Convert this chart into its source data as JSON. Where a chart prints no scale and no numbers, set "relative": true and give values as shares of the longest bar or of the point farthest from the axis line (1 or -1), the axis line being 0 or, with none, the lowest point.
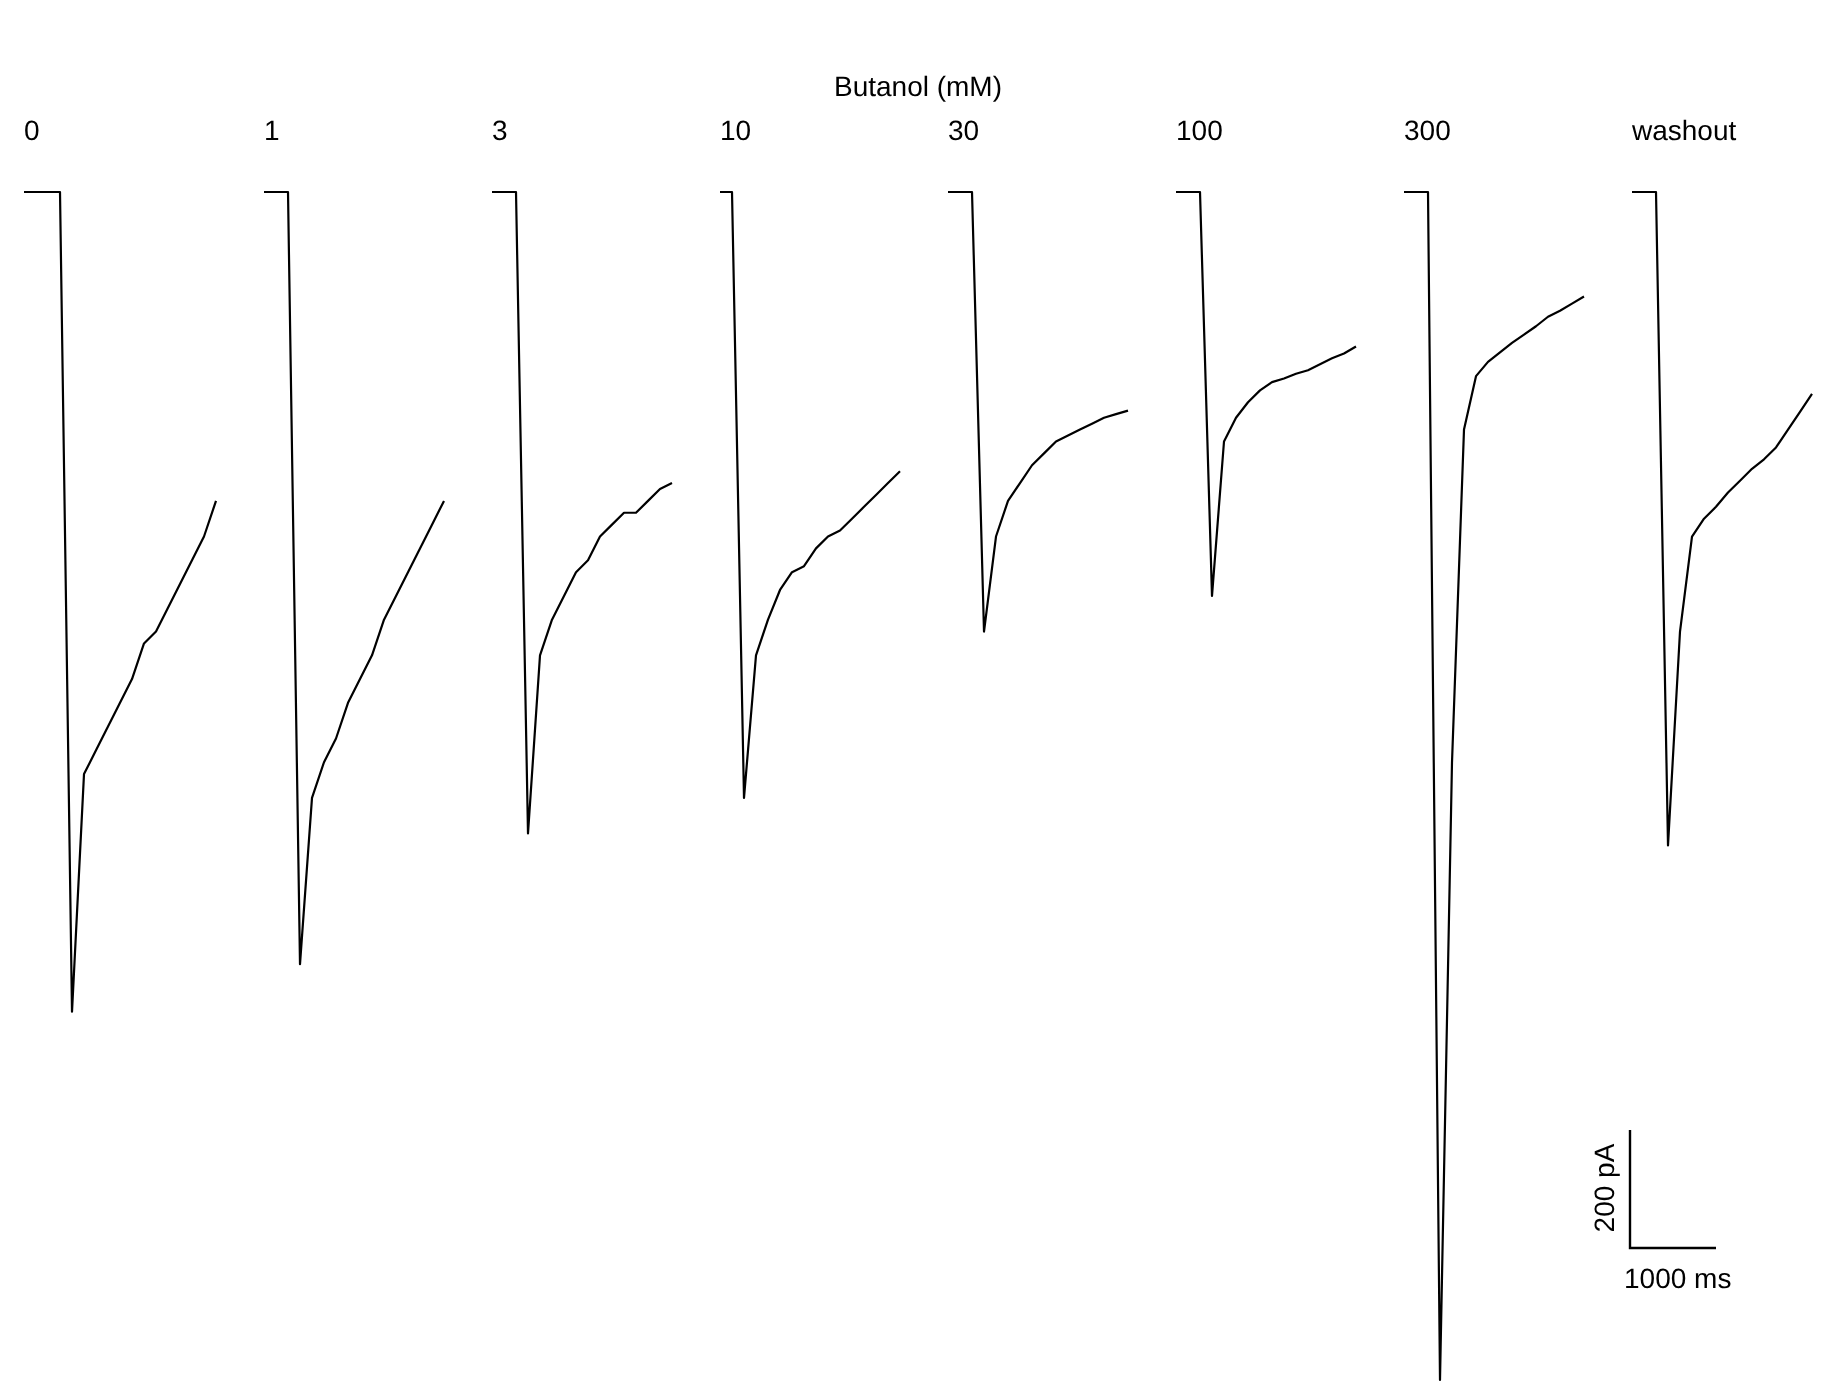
{
  "chart_data": {
    "type": "line",
    "title": "Butanol (mM)",
    "relative": true,
    "legend": false,
    "categories": [
      null,
      null,
      null,
      null,
      null,
      null,
      null,
      null,
      null,
      null,
      null,
      null,
      null,
      null,
      null,
      null,
      null,
      null,
      null,
      null,
      null,
      null,
      null,
      null,
      null,
      null,
      null,
      null,
      null,
      null,
      null,
      null,
      null,
      null,
      null,
      null,
      null,
      null,
      null,
      null,
      null,
      null,
      null,
      null,
      null,
      null,
      null,
      null,
      null,
      null,
      null,
      null,
      null,
      null,
      null,
      null,
      null,
      null,
      null,
      null,
      null,
      null,
      null,
      null,
      null,
      null,
      null,
      null,
      null,
      null,
      null,
      null,
      null,
      null,
      null,
      null,
      null,
      null,
      null,
      null,
      null,
      null,
      null,
      null,
      null,
      null,
      null,
      null,
      null,
      null,
      null,
      null,
      null,
      null,
      null,
      null,
      null,
      null,
      null,
      null,
      null,
      null,
      null,
      null,
      null,
      null,
      null,
      null,
      null,
      null,
      null,
      null,
      null,
      null,
      null,
      null,
      null,
      null,
      null,
      null,
      null,
      null,
      null,
      null,
      null,
      null,
      null,
      null,
      null,
      null,
      null,
      null,
      null,
      null,
      null,
      null,
      null,
      null,
      null,
      null,
      null,
      null,
      null,
      null,
      null,
      null,
      null,
      null,
      null,
      null
    ],
    "series": [
      {
        "name": "0",
        "color": "#000000",
        "values": [
          1,
          1,
          1,
          1,
          0.31,
          0.51,
          0.53,
          0.55,
          0.57,
          0.59,
          0.62,
          0.63,
          0.65,
          0.67,
          0.69,
          0.71,
          0.74,
          null,
          null,
          null,
          null,
          null,
          null,
          null,
          null,
          null,
          null,
          null,
          null,
          null,
          null,
          null,
          null,
          null,
          null,
          null,
          null,
          null,
          null,
          null,
          null,
          null,
          null,
          null,
          null,
          null,
          null,
          null,
          null,
          null,
          null,
          null,
          null,
          null,
          null,
          null,
          null,
          null,
          null,
          null,
          null,
          null,
          null,
          null,
          null,
          null,
          null,
          null,
          null,
          null,
          null,
          null,
          null,
          null,
          null,
          null,
          null,
          null,
          null,
          null,
          null,
          null,
          null,
          null,
          null,
          null,
          null,
          null,
          null,
          null,
          null,
          null,
          null,
          null,
          null,
          null,
          null,
          null,
          null,
          null,
          null,
          null,
          null,
          null,
          null,
          null,
          null,
          null,
          null,
          null,
          null,
          null,
          null,
          null,
          null,
          null,
          null,
          null,
          null,
          null,
          null,
          null,
          null,
          null,
          null,
          null,
          null,
          null,
          null,
          null,
          null,
          null,
          null,
          null,
          null,
          null,
          null,
          null,
          null,
          null,
          null,
          null,
          null,
          null,
          null,
          null,
          null,
          null,
          null,
          null
        ]
      },
      {
        "name": "1",
        "color": "#000000",
        "values": [
          null,
          null,
          null,
          null,
          null,
          null,
          null,
          null,
          null,
          null,
          null,
          null,
          null,
          null,
          null,
          null,
          null,
          null,
          null,
          null,
          1,
          1,
          1,
          0.35,
          0.49,
          0.52,
          0.54,
          0.57,
          0.59,
          0.61,
          0.64,
          0.66,
          0.68,
          0.7,
          0.72,
          0.74,
          null,
          null,
          null,
          null,
          null,
          null,
          null,
          null,
          null,
          null,
          null,
          null,
          null,
          null,
          null,
          null,
          null,
          null,
          null,
          null,
          null,
          null,
          null,
          null,
          null,
          null,
          null,
          null,
          null,
          null,
          null,
          null,
          null,
          null,
          null,
          null,
          null,
          null,
          null,
          null,
          null,
          null,
          null,
          null,
          null,
          null,
          null,
          null,
          null,
          null,
          null,
          null,
          null,
          null,
          null,
          null,
          null,
          null,
          null,
          null,
          null,
          null,
          null,
          null,
          null,
          null,
          null,
          null,
          null,
          null,
          null,
          null,
          null,
          null,
          null,
          null,
          null,
          null,
          null,
          null,
          null,
          null,
          null,
          null,
          null,
          null,
          null,
          null,
          null,
          null,
          null,
          null,
          null,
          null,
          null,
          null,
          null,
          null,
          null,
          null,
          null,
          null,
          null,
          null,
          null,
          null,
          null,
          null,
          null,
          null,
          null,
          null,
          null,
          null
        ]
      },
      {
        "name": "3",
        "color": "#000000",
        "values": [
          null,
          null,
          null,
          null,
          null,
          null,
          null,
          null,
          null,
          null,
          null,
          null,
          null,
          null,
          null,
          null,
          null,
          null,
          null,
          null,
          null,
          null,
          null,
          null,
          null,
          null,
          null,
          null,
          null,
          null,
          null,
          null,
          null,
          null,
          null,
          null,
          null,
          null,
          null,
          1,
          1,
          1,
          0.46,
          0.61,
          0.64,
          0.66,
          0.68,
          0.69,
          0.71,
          0.72,
          0.73,
          0.73,
          0.74,
          0.75,
          0.755,
          null,
          null,
          null,
          null,
          null,
          null,
          null,
          null,
          null,
          null,
          null,
          null,
          null,
          null,
          null,
          null,
          null,
          null,
          null,
          null,
          null,
          null,
          null,
          null,
          null,
          null,
          null,
          null,
          null,
          null,
          null,
          null,
          null,
          null,
          null,
          null,
          null,
          null,
          null,
          null,
          null,
          null,
          null,
          null,
          null,
          null,
          null,
          null,
          null,
          null,
          null,
          null,
          null,
          null,
          null,
          null,
          null,
          null,
          null,
          null,
          null,
          null,
          null,
          null,
          null,
          null,
          null,
          null,
          null,
          null,
          null,
          null,
          null,
          null,
          null,
          null,
          null,
          null,
          null,
          null,
          null,
          null,
          null,
          null,
          null,
          null,
          null,
          null,
          null,
          null,
          null,
          null,
          null,
          null,
          null
        ]
      },
      {
        "name": "10",
        "color": "#000000",
        "values": [
          null,
          null,
          null,
          null,
          null,
          null,
          null,
          null,
          null,
          null,
          null,
          null,
          null,
          null,
          null,
          null,
          null,
          null,
          null,
          null,
          null,
          null,
          null,
          null,
          null,
          null,
          null,
          null,
          null,
          null,
          null,
          null,
          null,
          null,
          null,
          null,
          null,
          null,
          null,
          null,
          null,
          null,
          null,
          null,
          null,
          null,
          null,
          null,
          null,
          null,
          null,
          null,
          null,
          null,
          null,
          null,
          null,
          null,
          1,
          1,
          0.49,
          0.61,
          0.64,
          0.665,
          0.68,
          0.685,
          0.7,
          0.71,
          0.715,
          0.725,
          0.735,
          0.745,
          0.755,
          0.765,
          null,
          null,
          null,
          null,
          null,
          null,
          null,
          null,
          null,
          null,
          null,
          null,
          null,
          null,
          null,
          null,
          null,
          null,
          null,
          null,
          null,
          null,
          null,
          null,
          null,
          null,
          null,
          null,
          null,
          null,
          null,
          null,
          null,
          null,
          null,
          null,
          null,
          null,
          null,
          null,
          null,
          null,
          null,
          null,
          null,
          null,
          null,
          null,
          null,
          null,
          null,
          null,
          null,
          null,
          null,
          null,
          null,
          null,
          null,
          null,
          null,
          null,
          null,
          null,
          null,
          null,
          null,
          null,
          null,
          null,
          null,
          null,
          null,
          null,
          null,
          null
        ]
      },
      {
        "name": "30",
        "color": "#000000",
        "values": [
          null,
          null,
          null,
          null,
          null,
          null,
          null,
          null,
          null,
          null,
          null,
          null,
          null,
          null,
          null,
          null,
          null,
          null,
          null,
          null,
          null,
          null,
          null,
          null,
          null,
          null,
          null,
          null,
          null,
          null,
          null,
          null,
          null,
          null,
          null,
          null,
          null,
          null,
          null,
          null,
          null,
          null,
          null,
          null,
          null,
          null,
          null,
          null,
          null,
          null,
          null,
          null,
          null,
          null,
          null,
          null,
          null,
          null,
          null,
          null,
          null,
          null,
          null,
          null,
          null,
          null,
          null,
          null,
          null,
          null,
          null,
          null,
          null,
          null,
          null,
          null,
          null,
          1,
          1,
          1,
          0.63,
          0.71,
          0.74,
          0.755,
          0.77,
          0.78,
          0.79,
          0.795,
          0.8,
          0.805,
          0.81,
          0.813,
          0.816,
          null,
          null,
          null,
          null,
          null,
          null,
          null,
          null,
          null,
          null,
          null,
          null,
          null,
          null,
          null,
          null,
          null,
          null,
          null,
          null,
          null,
          null,
          null,
          null,
          null,
          null,
          null,
          null,
          null,
          null,
          null,
          null,
          null,
          null,
          null,
          null,
          null,
          null,
          null,
          null,
          null,
          null,
          null,
          null,
          null,
          null,
          null,
          null,
          null,
          null,
          null,
          null,
          null,
          null,
          null,
          null,
          null
        ]
      },
      {
        "name": "100",
        "color": "#000000",
        "values": [
          null,
          null,
          null,
          null,
          null,
          null,
          null,
          null,
          null,
          null,
          null,
          null,
          null,
          null,
          null,
          null,
          null,
          null,
          null,
          null,
          null,
          null,
          null,
          null,
          null,
          null,
          null,
          null,
          null,
          null,
          null,
          null,
          null,
          null,
          null,
          null,
          null,
          null,
          null,
          null,
          null,
          null,
          null,
          null,
          null,
          null,
          null,
          null,
          null,
          null,
          null,
          null,
          null,
          null,
          null,
          null,
          null,
          null,
          null,
          null,
          null,
          null,
          null,
          null,
          null,
          null,
          null,
          null,
          null,
          null,
          null,
          null,
          null,
          null,
          null,
          null,
          null,
          null,
          null,
          null,
          null,
          null,
          null,
          null,
          null,
          null,
          null,
          null,
          null,
          null,
          null,
          null,
          null,
          null,
          null,
          null,
          1,
          1,
          1,
          0.66,
          0.79,
          0.81,
          0.823,
          0.833,
          0.84,
          0.843,
          0.847,
          0.85,
          0.855,
          0.86,
          0.864,
          0.87,
          null,
          null,
          null,
          null,
          null,
          null,
          null,
          null,
          null,
          null,
          null,
          null,
          null,
          null,
          null,
          null,
          null,
          null,
          null,
          null,
          null,
          null,
          null,
          null,
          null,
          null,
          null,
          null,
          null,
          null,
          null,
          null,
          null,
          null,
          null,
          null,
          null,
          null
        ]
      },
      {
        "name": "300",
        "color": "#000000",
        "values": [
          null,
          null,
          null,
          null,
          null,
          null,
          null,
          null,
          null,
          null,
          null,
          null,
          null,
          null,
          null,
          null,
          null,
          null,
          null,
          null,
          null,
          null,
          null,
          null,
          null,
          null,
          null,
          null,
          null,
          null,
          null,
          null,
          null,
          null,
          null,
          null,
          null,
          null,
          null,
          null,
          null,
          null,
          null,
          null,
          null,
          null,
          null,
          null,
          null,
          null,
          null,
          null,
          null,
          null,
          null,
          null,
          null,
          null,
          null,
          null,
          null,
          null,
          null,
          null,
          null,
          null,
          null,
          null,
          null,
          null,
          null,
          null,
          null,
          null,
          null,
          null,
          null,
          null,
          null,
          null,
          null,
          null,
          null,
          null,
          null,
          null,
          null,
          null,
          null,
          null,
          null,
          null,
          null,
          null,
          null,
          null,
          null,
          null,
          null,
          null,
          null,
          null,
          null,
          null,
          null,
          null,
          null,
          null,
          null,
          null,
          null,
          null,
          null,
          null,
          null,
          1,
          1,
          1,
          0,
          0.52,
          0.8,
          0.845,
          0.857,
          0.865,
          0.873,
          0.88,
          0.887,
          0.895,
          0.9,
          0.906,
          0.912,
          null,
          null,
          null,
          null,
          null,
          null,
          null,
          null,
          null,
          null,
          null,
          null,
          null,
          null,
          null,
          null,
          null,
          null,
          null
        ]
      },
      {
        "name": "washout",
        "color": "#000000",
        "values": [
          null,
          null,
          null,
          null,
          null,
          null,
          null,
          null,
          null,
          null,
          null,
          null,
          null,
          null,
          null,
          null,
          null,
          null,
          null,
          null,
          null,
          null,
          null,
          null,
          null,
          null,
          null,
          null,
          null,
          null,
          null,
          null,
          null,
          null,
          null,
          null,
          null,
          null,
          null,
          null,
          null,
          null,
          null,
          null,
          null,
          null,
          null,
          null,
          null,
          null,
          null,
          null,
          null,
          null,
          null,
          null,
          null,
          null,
          null,
          null,
          null,
          null,
          null,
          null,
          null,
          null,
          null,
          null,
          null,
          null,
          null,
          null,
          null,
          null,
          null,
          null,
          null,
          null,
          null,
          null,
          null,
          null,
          null,
          null,
          null,
          null,
          null,
          null,
          null,
          null,
          null,
          null,
          null,
          null,
          null,
          null,
          null,
          null,
          null,
          null,
          null,
          null,
          null,
          null,
          null,
          null,
          null,
          null,
          null,
          null,
          null,
          null,
          null,
          null,
          null,
          null,
          null,
          null,
          null,
          null,
          null,
          null,
          null,
          null,
          null,
          null,
          null,
          null,
          null,
          null,
          null,
          null,
          null,
          null,
          1,
          1,
          1,
          0.45,
          0.63,
          0.71,
          0.725,
          0.735,
          0.747,
          0.757,
          0.767,
          0.775,
          0.785,
          0.8,
          0.815,
          0.83
        ]
      }
    ],
    "annotations": [
      "200 pA",
      "1000 ms"
    ]
  }
}
